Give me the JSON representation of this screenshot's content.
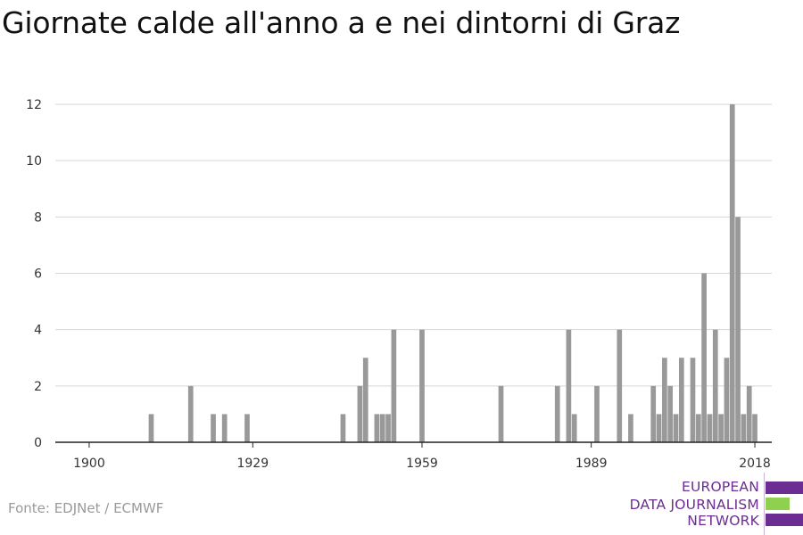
{
  "title": "Giornate calde all'anno a e nei dintorni di Graz",
  "source": "Fonte: EDJNet / ECMWF",
  "logo": {
    "line1": "EUROPEAN",
    "line2": "DATA JOURNALISM",
    "line3": "NETWORK",
    "colors": {
      "purple": "#6b2d91",
      "green": "#8fd14f"
    }
  },
  "chart_data": {
    "type": "bar",
    "title": "Giornate calde all'anno a e nei dintorni di Graz",
    "xlabel": "",
    "ylabel": "",
    "xlim": [
      1894,
      2021
    ],
    "ylim": [
      0,
      12
    ],
    "x_ticks": [
      1900,
      1929,
      1959,
      1989,
      2018
    ],
    "y_ticks": [
      0,
      2,
      4,
      6,
      8,
      10,
      12
    ],
    "grid": "horizontal",
    "bar_color": "#999999",
    "x": [
      1911,
      1918,
      1922,
      1924,
      1928,
      1945,
      1948,
      1949,
      1951,
      1952,
      1953,
      1954,
      1959,
      1973,
      1983,
      1985,
      1986,
      1990,
      1994,
      1996,
      2000,
      2001,
      2002,
      2003,
      2004,
      2005,
      2007,
      2008,
      2009,
      2010,
      2011,
      2012,
      2013,
      2014,
      2015,
      2016,
      2017,
      2018
    ],
    "values": [
      1,
      2,
      1,
      1,
      1,
      1,
      2,
      3,
      1,
      1,
      1,
      4,
      4,
      2,
      2,
      4,
      1,
      2,
      4,
      1,
      2,
      1,
      3,
      2,
      1,
      3,
      3,
      1,
      6,
      1,
      4,
      1,
      3,
      12,
      8,
      1,
      2,
      1
    ]
  }
}
